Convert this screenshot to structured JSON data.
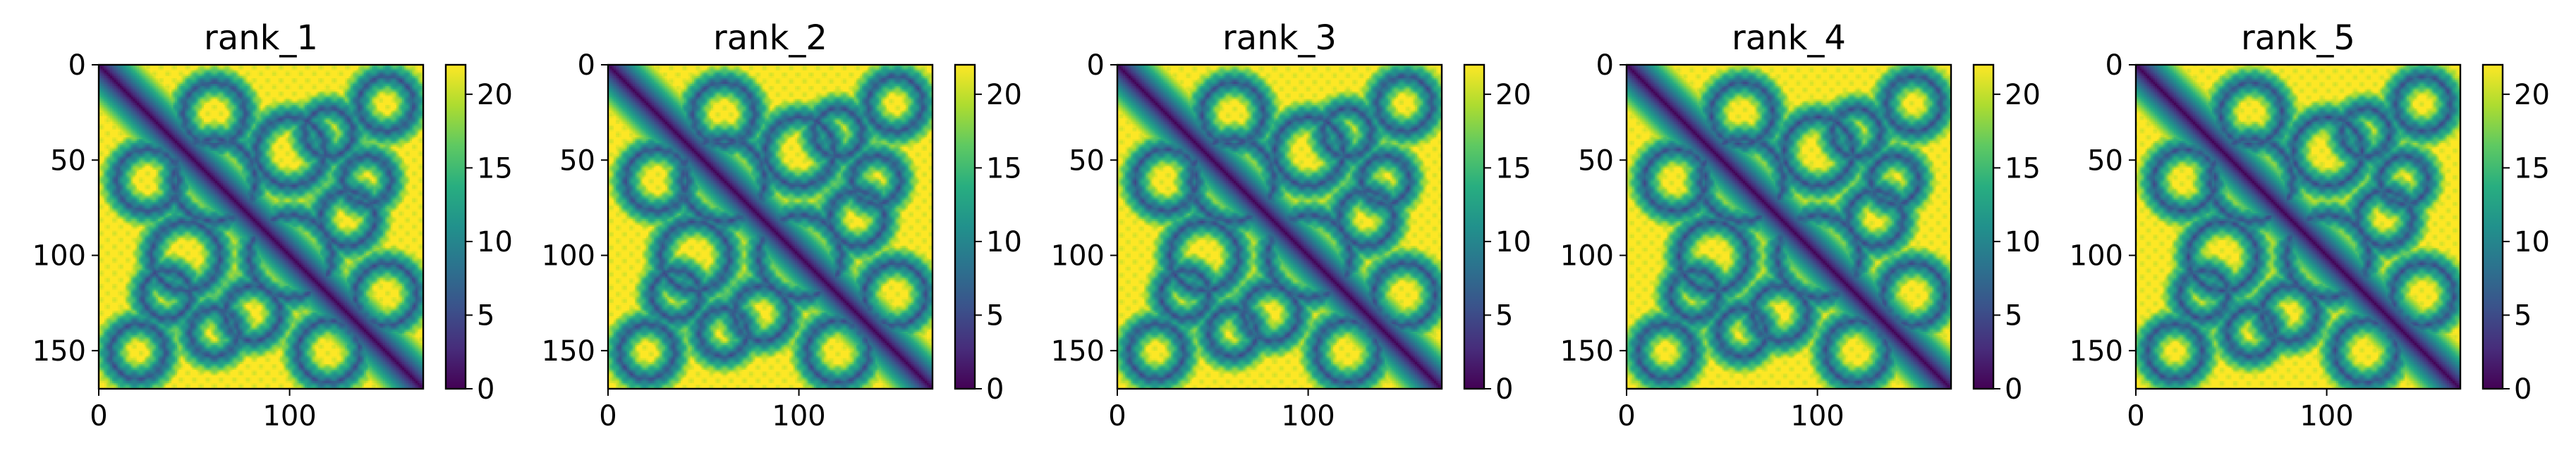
{
  "chart_data": [
    {
      "type": "heatmap",
      "title": "rank_1",
      "matrix_size": 170,
      "xlim": [
        0,
        170
      ],
      "ylim": [
        170,
        0
      ],
      "x_ticks": [
        0,
        100
      ],
      "y_ticks": [
        0,
        50,
        100,
        150
      ],
      "colorbar": {
        "min": 0,
        "max": 22,
        "ticks": [
          0,
          5,
          10,
          15,
          20
        ]
      },
      "colormap": "viridis",
      "diagonal_value": 0,
      "saturated_value": 22
    },
    {
      "type": "heatmap",
      "title": "rank_2",
      "matrix_size": 170,
      "xlim": [
        0,
        170
      ],
      "ylim": [
        170,
        0
      ],
      "x_ticks": [
        0,
        100
      ],
      "y_ticks": [
        0,
        50,
        100,
        150
      ],
      "colorbar": {
        "min": 0,
        "max": 22,
        "ticks": [
          0,
          5,
          10,
          15,
          20
        ]
      },
      "colormap": "viridis",
      "diagonal_value": 0,
      "saturated_value": 22
    },
    {
      "type": "heatmap",
      "title": "rank_3",
      "matrix_size": 170,
      "xlim": [
        0,
        170
      ],
      "ylim": [
        170,
        0
      ],
      "x_ticks": [
        0,
        100
      ],
      "y_ticks": [
        0,
        50,
        100,
        150
      ],
      "colorbar": {
        "min": 0,
        "max": 22,
        "ticks": [
          0,
          5,
          10,
          15,
          20
        ]
      },
      "colormap": "viridis",
      "diagonal_value": 0,
      "saturated_value": 22
    },
    {
      "type": "heatmap",
      "title": "rank_4",
      "matrix_size": 170,
      "xlim": [
        0,
        170
      ],
      "ylim": [
        170,
        0
      ],
      "x_ticks": [
        0,
        100
      ],
      "y_ticks": [
        0,
        50,
        100,
        150
      ],
      "colorbar": {
        "min": 0,
        "max": 22,
        "ticks": [
          0,
          5,
          10,
          15,
          20
        ]
      },
      "colormap": "viridis",
      "diagonal_value": 0,
      "saturated_value": 22
    },
    {
      "type": "heatmap",
      "title": "rank_5",
      "matrix_size": 170,
      "xlim": [
        0,
        170
      ],
      "ylim": [
        170,
        0
      ],
      "x_ticks": [
        0,
        100
      ],
      "y_ticks": [
        0,
        50,
        100,
        150
      ],
      "colorbar": {
        "min": 0,
        "max": 22,
        "ticks": [
          0,
          5,
          10,
          15,
          20
        ]
      },
      "colormap": "viridis",
      "diagonal_value": 0,
      "saturated_value": 22
    }
  ],
  "colors": {
    "viridis_low": "#440154",
    "viridis_mid": "#21918c",
    "viridis_high": "#fde725",
    "axis": "#000000",
    "background": "#ffffff"
  }
}
